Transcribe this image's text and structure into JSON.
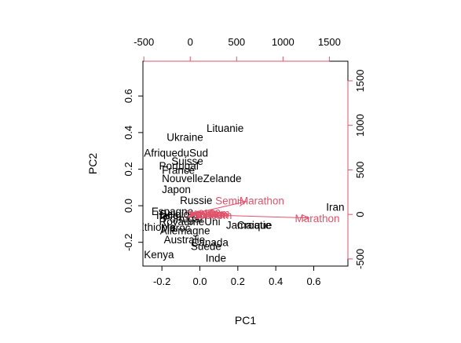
{
  "chart_data": {
    "type": "scatter",
    "subtype": "pca-biplot",
    "title": "",
    "xlabel": "PC1",
    "ylabel": "PC2",
    "xlim": [
      -0.3,
      0.78
    ],
    "ylim": [
      -0.33,
      0.79
    ],
    "x_ticks": [
      "-0.2",
      "0.0",
      "0.2",
      "0.4",
      "0.6"
    ],
    "y_ticks": [
      "-0.2",
      "0.0",
      "0.2",
      "0.4",
      "0.6"
    ],
    "top_axis": {
      "ticks": [
        "-500",
        "0",
        "500",
        "1000",
        "1500"
      ],
      "values": [
        -500,
        0,
        500,
        1000,
        1500
      ],
      "lim": [
        -510,
        1700
      ]
    },
    "right_axis": {
      "ticks": [
        "-500",
        "0",
        "500",
        "1000",
        "1500"
      ],
      "values": [
        -500,
        0,
        500,
        1000,
        1500
      ],
      "lim": [
        -580,
        1720
      ]
    },
    "observations": [
      {
        "label": "Lituanie",
        "x": 0.035,
        "y": 0.425
      },
      {
        "label": "Ukraine",
        "x": -0.175,
        "y": 0.375
      },
      {
        "label": "AfriqueduSud",
        "x": -0.295,
        "y": 0.29
      },
      {
        "label": "Suisse",
        "x": -0.15,
        "y": 0.245
      },
      {
        "label": "Portugal",
        "x": -0.215,
        "y": 0.22
      },
      {
        "label": "France",
        "x": -0.2,
        "y": 0.195
      },
      {
        "label": "NouvelleZelande",
        "x": -0.2,
        "y": 0.15
      },
      {
        "label": "Japon",
        "x": -0.2,
        "y": 0.09
      },
      {
        "label": "Russie",
        "x": -0.105,
        "y": 0.03
      },
      {
        "label": "Espagne",
        "x": -0.255,
        "y": -0.03
      },
      {
        "label": "Italie",
        "x": -0.23,
        "y": -0.05
      },
      {
        "label": "Belgique",
        "x": -0.21,
        "y": -0.045
      },
      {
        "label": "Portugal",
        "x": -0.195,
        "y": -0.07
      },
      {
        "label": "RoyaumeUni",
        "x": -0.215,
        "y": -0.085
      },
      {
        "label": "Ethiopie",
        "x": -0.33,
        "y": -0.115
      },
      {
        "label": "Maroc",
        "x": -0.205,
        "y": -0.12
      },
      {
        "label": "Allemagne",
        "x": -0.21,
        "y": -0.135
      },
      {
        "label": "Jamaique",
        "x": 0.138,
        "y": -0.105
      },
      {
        "label": "Croatie",
        "x": 0.195,
        "y": -0.105
      },
      {
        "label": "Australie",
        "x": -0.19,
        "y": -0.185
      },
      {
        "label": "Canada",
        "x": -0.045,
        "y": -0.2
      },
      {
        "label": "Suede",
        "x": -0.048,
        "y": -0.22
      },
      {
        "label": "Kenya",
        "x": -0.295,
        "y": -0.265
      },
      {
        "label": "Inde",
        "x": 0.03,
        "y": -0.285
      },
      {
        "label": "Iran",
        "x": 0.665,
        "y": -0.005
      }
    ],
    "variables": [
      {
        "label": "SemiMarathon",
        "x": 600,
        "y": 145
      },
      {
        "label": "Marathon",
        "x": 1280,
        "y": -40
      },
      {
        "label": "100m",
        "x": 130,
        "y": 15
      },
      {
        "label": "200m",
        "x": 80,
        "y": 8
      },
      {
        "label": "400m",
        "x": 60,
        "y": 5
      },
      {
        "label": "1500m",
        "x": 50,
        "y": 2
      },
      {
        "label": "5000m",
        "x": 30,
        "y": -5
      },
      {
        "label": "10000m",
        "x": 35,
        "y": -8
      }
    ],
    "colors": {
      "observations": "#000000",
      "variables": "#DF536B",
      "frame": "#000000"
    }
  }
}
